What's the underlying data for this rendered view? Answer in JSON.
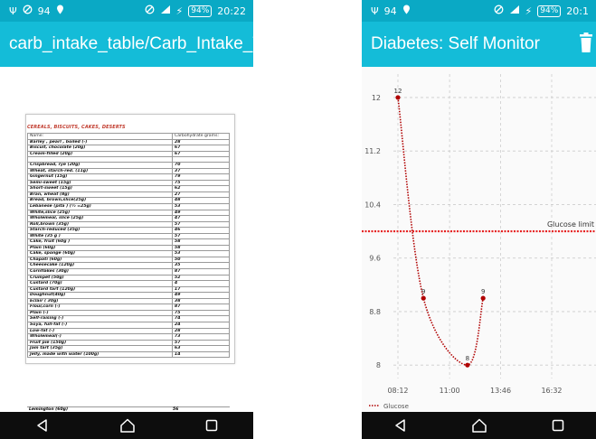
{
  "left": {
    "status": {
      "usb": "Ψ",
      "notif_count": "94",
      "battery": "94%",
      "time": "20:22"
    },
    "title": "carb_intake_table/Carb_Intake_Ta...",
    "section_title": "CEREALS, BISCUITS, CAKES, DESERTS",
    "header": {
      "name": "Name:",
      "carbs": "Carbohydrate grams:"
    },
    "rows": [
      {
        "name": "Barley , pearl , boiled (-)",
        "value": "28"
      },
      {
        "name": "Biscuit, chocolate (20g)",
        "value": "67"
      },
      {
        "name": "Cream-filled (20g)",
        "value": "67"
      },
      {
        "name": "",
        "value": ""
      },
      {
        "name": "Crispbread, rye (20g)",
        "value": "70"
      },
      {
        "name": "Wheat, starch-red. (11g)",
        "value": "37"
      },
      {
        "name": "Gingernut (15g)",
        "value": "79"
      },
      {
        "name": "Semi-sweet (15g)",
        "value": "75"
      },
      {
        "name": "Short-sweet (15g)",
        "value": "62"
      },
      {
        "name": "Bran, wheat (8g)",
        "value": "27"
      },
      {
        "name": "Bread, brown,slice(25g)",
        "value": "48"
      },
      {
        "name": "Lebanese (pita ) (½ =25g)",
        "value": "53"
      },
      {
        "name": "White,slice (25g)",
        "value": "49"
      },
      {
        "name": "Wholemeal, slice (25g)",
        "value": "47"
      },
      {
        "name": "Roll,brown (35g)",
        "value": "57"
      },
      {
        "name": "Starch-reduced (35g)",
        "value": "46"
      },
      {
        "name": "White (35 g )",
        "value": "57"
      },
      {
        "name": "Cake, fruit (60g )",
        "value": "58"
      },
      {
        "name": "Plain (60g)",
        "value": "58"
      },
      {
        "name": "Cake, sponge (60g)",
        "value": "53"
      },
      {
        "name": "Chapati (60g)",
        "value": "50"
      },
      {
        "name": "Cheesecake (120g)",
        "value": "35"
      },
      {
        "name": "Cornflakes (30g)",
        "value": "87"
      },
      {
        "name": "Crumpet (50g)",
        "value": "52"
      },
      {
        "name": "Custard (70g)",
        "value": "4"
      },
      {
        "name": "Custard tart (120g)",
        "value": "17"
      },
      {
        "name": "Doughnut(40g)",
        "value": "49"
      },
      {
        "name": "Eclair ( 30g)",
        "value": "38"
      },
      {
        "name": "Flour,corn (-)",
        "value": "87"
      },
      {
        "name": "Plain (-)",
        "value": "75"
      },
      {
        "name": "Self-raising (-)",
        "value": "74"
      },
      {
        "name": "Soya, full-fat (-)",
        "value": "24"
      },
      {
        "name": "Low-fat (-)",
        "value": "28"
      },
      {
        "name": "Wholemeal(-)",
        "value": "73"
      },
      {
        "name": "Fruit pie (150g)",
        "value": "57"
      },
      {
        "name": "Jam tart (35g)",
        "value": "63"
      },
      {
        "name": "Jelly, made with water (100g)",
        "value": "14"
      }
    ],
    "last_row": {
      "name": "Lemington (60g)",
      "value": "56"
    }
  },
  "right": {
    "status": {
      "usb": "Ψ",
      "notif_count": "94",
      "battery": "94%",
      "time": "20:1"
    },
    "title": "Diabetes: Self Monitor",
    "chart_data": {
      "type": "line",
      "x": [
        "08:12",
        "09:35",
        "11:58",
        "12:49"
      ],
      "series": [
        {
          "name": "Glucose",
          "values": [
            12,
            9,
            8,
            9
          ]
        }
      ],
      "data_labels": [
        "12",
        "9",
        "8",
        "9"
      ],
      "x_ticks": [
        "08:12",
        "11:00",
        "13:46",
        "16:32"
      ],
      "y_ticks": [
        "8",
        "8.8",
        "9.6",
        "10.4",
        "11.2",
        "12"
      ],
      "ylim": [
        7.8,
        12.35
      ],
      "reference_line": {
        "label": "Glucose limit",
        "value": 10.0
      },
      "grid": true,
      "legend": "bottom-left",
      "colors": {
        "series": "#b00000",
        "limit": "#e62020"
      }
    }
  }
}
